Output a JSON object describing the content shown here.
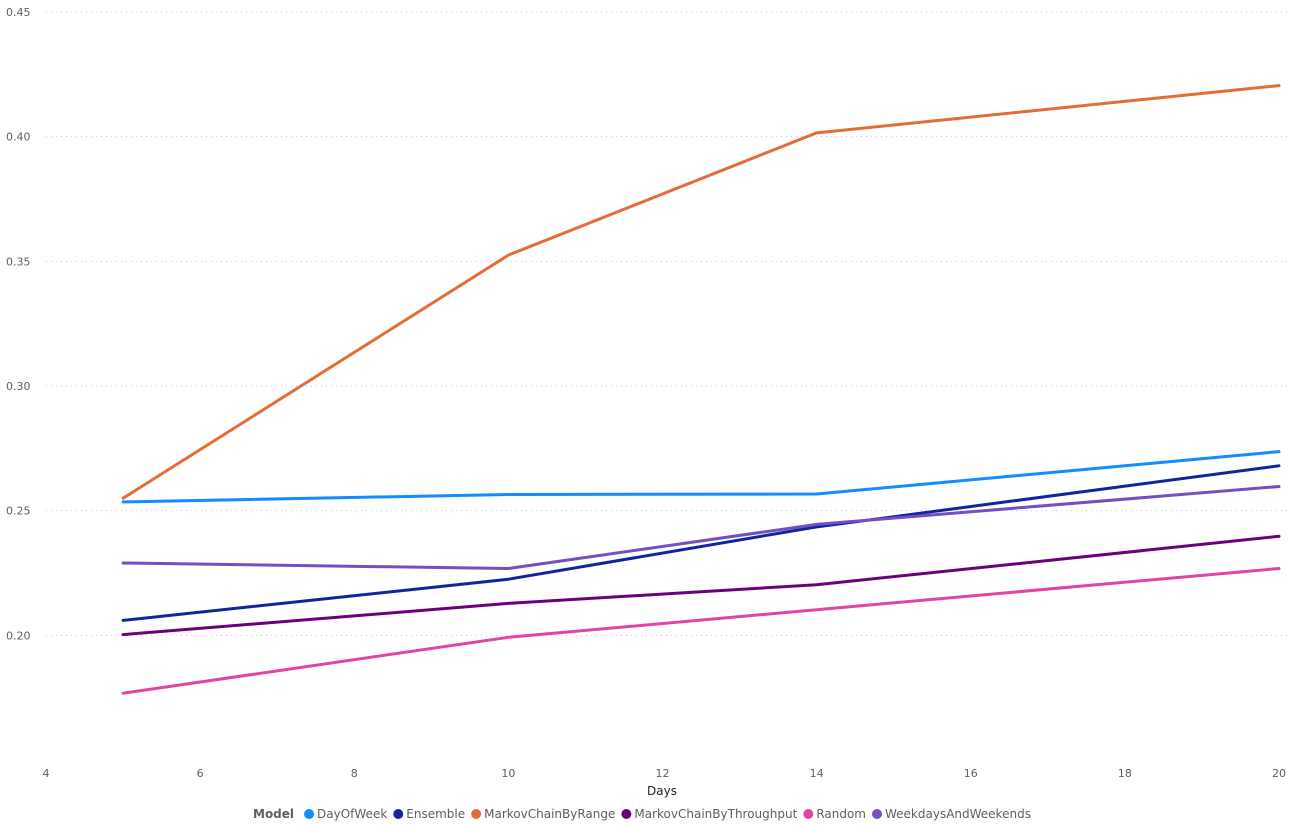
{
  "chart_data": {
    "type": "line",
    "title": "",
    "xlabel": "Days",
    "ylabel": "",
    "xlim": [
      4,
      20
    ],
    "ylim": [
      0.15,
      0.45
    ],
    "x_ticks": [
      4,
      6,
      8,
      10,
      12,
      14,
      16,
      18,
      20
    ],
    "y_ticks": [
      "0.20",
      "0.25",
      "0.30",
      "0.35",
      "0.40",
      "0.45"
    ],
    "grid": true,
    "legend_title": "Model",
    "legend_position": "bottom",
    "x": [
      5,
      10,
      14,
      20
    ],
    "series": [
      {
        "name": "DayOfWeek",
        "color": "#118dff",
        "values": [
          0.2535,
          0.2565,
          0.2567,
          0.2737
        ]
      },
      {
        "name": "Ensemble",
        "color": "#12239e",
        "values": [
          0.206,
          0.2225,
          0.2435,
          0.268
        ]
      },
      {
        "name": "MarkovChainByRange",
        "color": "#e66c37",
        "values": [
          0.255,
          0.3525,
          0.4015,
          0.4205
        ]
      },
      {
        "name": "MarkovChainByThroughput",
        "color": "#6b007b",
        "values": [
          0.2003,
          0.2128,
          0.2203,
          0.2397
        ]
      },
      {
        "name": "Random",
        "color": "#e044a7",
        "values": [
          0.1768,
          0.1992,
          0.2103,
          0.2268
        ]
      },
      {
        "name": "WeekdaysAndWeekends",
        "color": "#744ec2",
        "values": [
          0.229,
          0.2268,
          0.2445,
          0.2597
        ]
      }
    ]
  }
}
